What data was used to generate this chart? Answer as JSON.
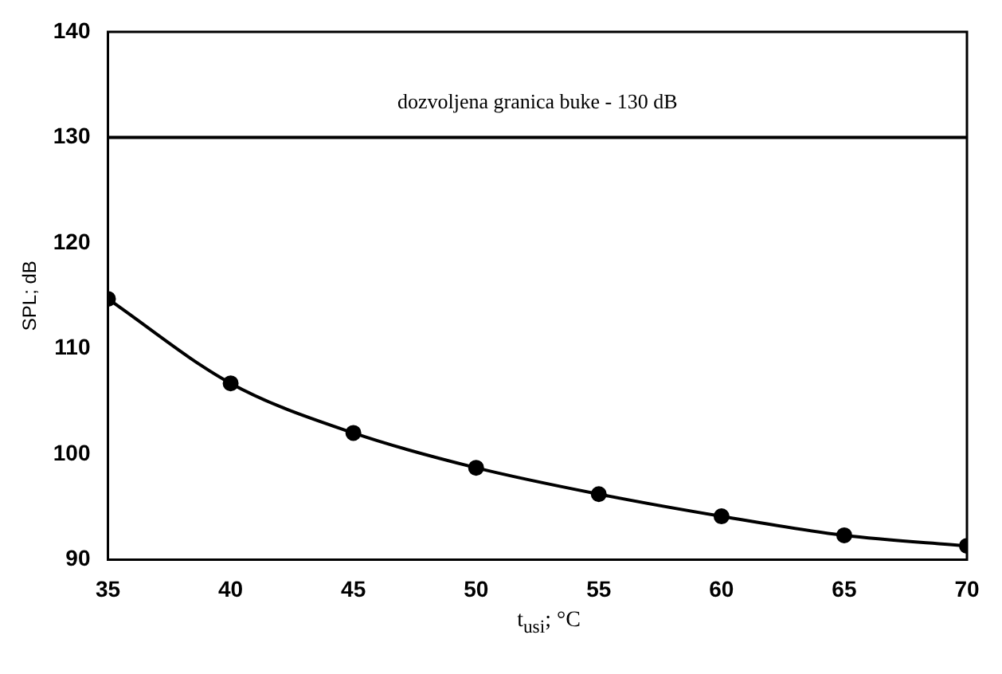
{
  "chart_data": {
    "type": "line",
    "xlabel": "t$_{usi}$; °C",
    "ylabel": "SPL; dB",
    "x": [
      35,
      40,
      45,
      50,
      55,
      60,
      65,
      70
    ],
    "series": [
      {
        "color": "#000000",
        "values": [
          114.7,
          106.7,
          102.0,
          98.7,
          96.2,
          94.1,
          92.3,
          91.3
        ]
      }
    ],
    "xlim": [
      35,
      70
    ],
    "xticks": [
      35,
      40,
      45,
      50,
      55,
      60,
      65,
      70
    ],
    "ylim": [
      90,
      140
    ],
    "yticks": [
      90,
      100,
      110,
      120,
      130,
      140
    ],
    "ref_lines": [
      {
        "axis": "y",
        "value": 130,
        "label": "dozvoljena granica buke - 130 dB",
        "color": "#000000"
      }
    ],
    "grid": false,
    "legend": false,
    "marker": "circle",
    "line_style": "solid"
  }
}
